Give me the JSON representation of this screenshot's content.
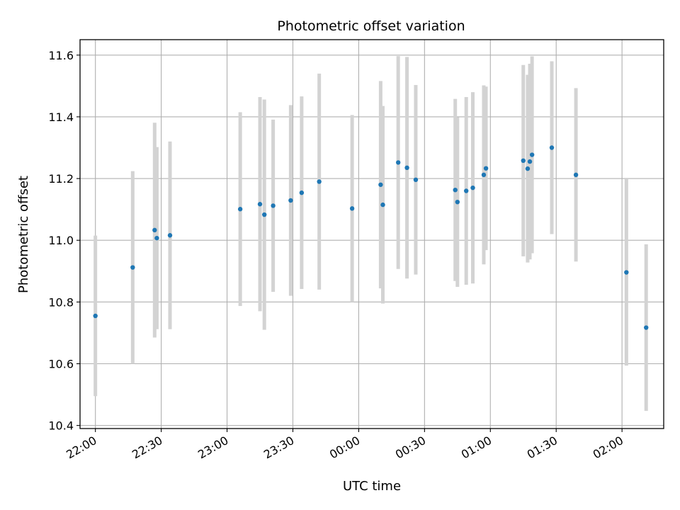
{
  "chart_data": {
    "type": "scatter",
    "title": "Photometric offset variation",
    "xlabel": "UTC time",
    "ylabel": "Photometric offset",
    "x_unit": "UTC time (hh:mm), times after midnight are on the following day",
    "xlim": [
      "21:53",
      "24:00+02:19"
    ],
    "ylim": [
      10.39,
      11.65
    ],
    "x_ticks": [
      "22:00",
      "22:30",
      "23:00",
      "23:30",
      "00:00",
      "00:30",
      "01:00",
      "01:30",
      "02:00"
    ],
    "y_ticks": [
      "10.4",
      "10.6",
      "10.8",
      "11.0",
      "11.2",
      "11.4",
      "11.6"
    ],
    "grid": true,
    "marker_color": "#1f77b4",
    "errorbar_color": "#d3d3d3",
    "points": [
      {
        "t": "22:00",
        "y": 10.755,
        "lo": 10.495,
        "hi": 11.015
      },
      {
        "t": "22:17",
        "y": 10.912,
        "lo": 10.6,
        "hi": 11.224
      },
      {
        "t": "22:27",
        "y": 11.033,
        "lo": 10.685,
        "hi": 11.381
      },
      {
        "t": "22:28",
        "y": 11.007,
        "lo": 10.712,
        "hi": 11.302
      },
      {
        "t": "22:34",
        "y": 11.016,
        "lo": 10.712,
        "hi": 11.32
      },
      {
        "t": "23:06",
        "y": 11.101,
        "lo": 10.787,
        "hi": 11.415
      },
      {
        "t": "23:15",
        "y": 11.117,
        "lo": 10.77,
        "hi": 11.464
      },
      {
        "t": "23:17",
        "y": 11.083,
        "lo": 10.71,
        "hi": 11.456
      },
      {
        "t": "23:21",
        "y": 11.112,
        "lo": 10.833,
        "hi": 11.391
      },
      {
        "t": "23:29",
        "y": 11.129,
        "lo": 10.82,
        "hi": 11.438
      },
      {
        "t": "23:34",
        "y": 11.154,
        "lo": 10.842,
        "hi": 11.466
      },
      {
        "t": "23:42",
        "y": 11.19,
        "lo": 10.84,
        "hi": 11.54
      },
      {
        "t": "23:57",
        "y": 11.103,
        "lo": 10.8,
        "hi": 11.406
      },
      {
        "t": "00:10",
        "y": 11.18,
        "lo": 10.844,
        "hi": 11.516
      },
      {
        "t": "00:11",
        "y": 11.115,
        "lo": 10.795,
        "hi": 11.435
      },
      {
        "t": "00:18",
        "y": 11.252,
        "lo": 10.907,
        "hi": 11.597
      },
      {
        "t": "00:22",
        "y": 11.235,
        "lo": 10.876,
        "hi": 11.594
      },
      {
        "t": "00:26",
        "y": 11.196,
        "lo": 10.889,
        "hi": 11.503
      },
      {
        "t": "00:44",
        "y": 11.163,
        "lo": 10.868,
        "hi": 11.458
      },
      {
        "t": "00:45",
        "y": 11.124,
        "lo": 10.849,
        "hi": 11.399
      },
      {
        "t": "00:49",
        "y": 11.16,
        "lo": 10.856,
        "hi": 11.464
      },
      {
        "t": "00:52",
        "y": 11.17,
        "lo": 10.86,
        "hi": 11.48
      },
      {
        "t": "00:57",
        "y": 11.212,
        "lo": 10.922,
        "hi": 11.502
      },
      {
        "t": "00:58",
        "y": 11.233,
        "lo": 10.968,
        "hi": 11.498
      },
      {
        "t": "01:15",
        "y": 11.258,
        "lo": 10.948,
        "hi": 11.568
      },
      {
        "t": "01:17",
        "y": 11.232,
        "lo": 10.928,
        "hi": 11.536
      },
      {
        "t": "01:18",
        "y": 11.255,
        "lo": 10.938,
        "hi": 11.572
      },
      {
        "t": "01:19",
        "y": 11.277,
        "lo": 10.958,
        "hi": 11.596
      },
      {
        "t": "01:28",
        "y": 11.3,
        "lo": 11.02,
        "hi": 11.58
      },
      {
        "t": "01:39",
        "y": 11.212,
        "lo": 10.931,
        "hi": 11.493
      },
      {
        "t": "02:02",
        "y": 10.896,
        "lo": 10.594,
        "hi": 11.198
      },
      {
        "t": "02:11",
        "y": 10.717,
        "lo": 10.447,
        "hi": 10.987
      }
    ]
  }
}
